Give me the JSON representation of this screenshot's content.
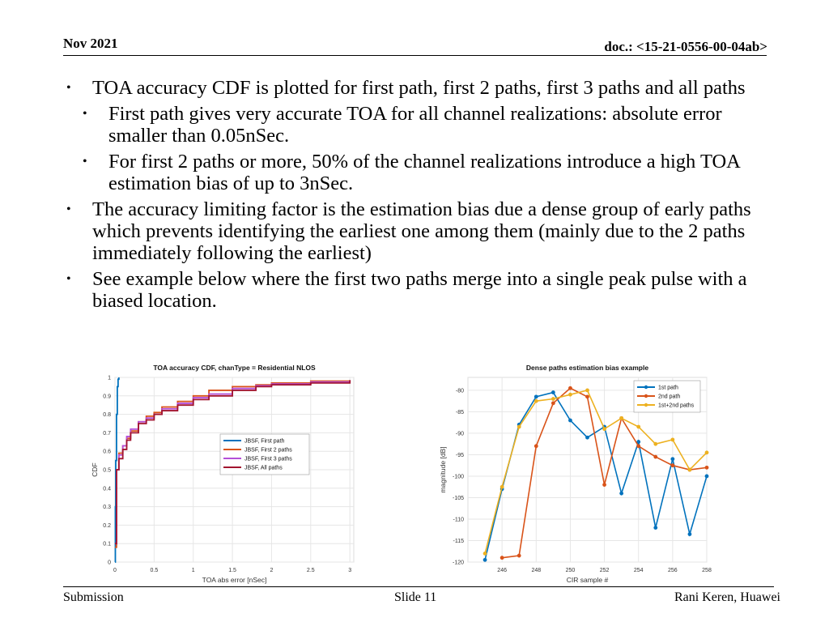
{
  "header": {
    "date": "Nov 2021",
    "doc": "doc.: <15-21-0556-00-04ab>"
  },
  "bullets": [
    {
      "level": 1,
      "text": "TOA accuracy CDF is plotted for first path, first 2 paths, first 3 paths and all paths"
    },
    {
      "level": 2,
      "text": "First path gives very accurate TOA for all channel realizations: absolute error smaller than 0.05nSec."
    },
    {
      "level": 2,
      "text": "For first 2 paths or more, 50% of the channel realizations introduce a high TOA estimation bias of up to 3nSec."
    },
    {
      "level": 1,
      "text": "The accuracy limiting factor is the estimation bias due a dense group of early paths which prevents identifying the earliest one among them (mainly due to the 2 paths immediately following the earliest)"
    },
    {
      "level": 1,
      "text": "See example below where the first two paths merge into a single peak pulse with a biased location."
    }
  ],
  "footer": {
    "left": "Submission",
    "center": "Slide 11",
    "right": "Rani Keren, Huawei"
  },
  "chart_data": [
    {
      "type": "line",
      "title": "TOA accuracy CDF, chanType  = Residential NLOS",
      "xlabel": "TOA abs error [nSec]",
      "ylabel": "CDF",
      "xlim": [
        0,
        3.05
      ],
      "ylim": [
        0,
        1
      ],
      "xticks": [
        "0",
        "0.5",
        "1",
        "1.5",
        "2",
        "2.5",
        "3"
      ],
      "yticks": [
        "0",
        "0.1",
        "0.2",
        "0.3",
        "0.4",
        "0.5",
        "0.6",
        "0.7",
        "0.8",
        "0.9",
        "1"
      ],
      "grid": true,
      "step": true,
      "legend_position": "center-right",
      "series": [
        {
          "name": "JBSF, First path",
          "color": "#0072BD",
          "x": [
            0,
            0.005,
            0.01,
            0.02,
            0.03,
            0.04,
            0.05
          ],
          "y": [
            0,
            0.3,
            0.55,
            0.8,
            0.95,
            0.99,
            1.0
          ]
        },
        {
          "name": "JBSF, First 2 paths",
          "color": "#D95319",
          "x": [
            0,
            0.02,
            0.05,
            0.1,
            0.15,
            0.2,
            0.3,
            0.4,
            0.5,
            0.6,
            0.8,
            1.0,
            1.2,
            1.5,
            1.8,
            2.0,
            2.5,
            3.0
          ],
          "y": [
            0.08,
            0.5,
            0.59,
            0.63,
            0.67,
            0.71,
            0.76,
            0.79,
            0.81,
            0.84,
            0.87,
            0.9,
            0.93,
            0.95,
            0.96,
            0.97,
            0.98,
            0.985
          ]
        },
        {
          "name": "JBSF, First 3 paths",
          "color": "#B44FD8",
          "x": [
            0,
            0.02,
            0.05,
            0.1,
            0.15,
            0.2,
            0.3,
            0.4,
            0.5,
            0.6,
            0.8,
            1.0,
            1.2,
            1.5,
            1.8,
            2.0,
            2.5,
            3.0
          ],
          "y": [
            0.1,
            0.5,
            0.58,
            0.63,
            0.68,
            0.72,
            0.76,
            0.78,
            0.8,
            0.83,
            0.86,
            0.89,
            0.91,
            0.94,
            0.955,
            0.965,
            0.975,
            0.985
          ]
        },
        {
          "name": "JBSF, All paths",
          "color": "#A2142F",
          "x": [
            0,
            0.02,
            0.05,
            0.1,
            0.15,
            0.2,
            0.3,
            0.4,
            0.5,
            0.6,
            0.8,
            1.0,
            1.2,
            1.5,
            1.8,
            2.0,
            2.5,
            3.0
          ],
          "y": [
            0.1,
            0.5,
            0.56,
            0.61,
            0.66,
            0.7,
            0.75,
            0.77,
            0.8,
            0.82,
            0.85,
            0.88,
            0.9,
            0.93,
            0.95,
            0.96,
            0.97,
            0.985
          ]
        }
      ]
    },
    {
      "type": "line",
      "title": "Dense paths estimation bias example",
      "xlabel": "CIR sample #",
      "ylabel": "magnitude [dB]",
      "xlim": [
        244,
        258
      ],
      "ylim": [
        -120,
        -77
      ],
      "xticks": [
        "246",
        "248",
        "250",
        "252",
        "254",
        "256",
        "258"
      ],
      "yticks": [
        "-80",
        "-85",
        "-90",
        "-95",
        "-100",
        "-105",
        "-110",
        "-115",
        "-120"
      ],
      "grid": true,
      "legend_position": "top-right",
      "series": [
        {
          "name": "1st path",
          "color": "#0072BD",
          "x": [
            245,
            246,
            247,
            248,
            249,
            250,
            251,
            252,
            253,
            254,
            255,
            256,
            257,
            258
          ],
          "y": [
            -119.5,
            -103,
            -88,
            -81.5,
            -80.5,
            -87,
            -91,
            -88.5,
            -104,
            -92,
            -112,
            -96,
            -113.5,
            -100
          ]
        },
        {
          "name": "2nd path",
          "color": "#D95319",
          "x": [
            246,
            247,
            248,
            249,
            250,
            251,
            252,
            253,
            254,
            255,
            256,
            257,
            258
          ],
          "y": [
            -119,
            -118.5,
            -93,
            -83,
            -79.5,
            -81.5,
            -102,
            -86.5,
            -93,
            -95.5,
            -97.5,
            -98.5,
            -98
          ]
        },
        {
          "name": "1st+2nd paths",
          "color": "#EDB120",
          "x": [
            245,
            246,
            247,
            248,
            249,
            250,
            251,
            252,
            253,
            254,
            255,
            256,
            257,
            258
          ],
          "y": [
            -118,
            -102.5,
            -88.5,
            -82.5,
            -82,
            -81,
            -80,
            -89,
            -86.5,
            -88.5,
            -92.5,
            -91.5,
            -98.5,
            -94.5
          ]
        }
      ]
    }
  ]
}
